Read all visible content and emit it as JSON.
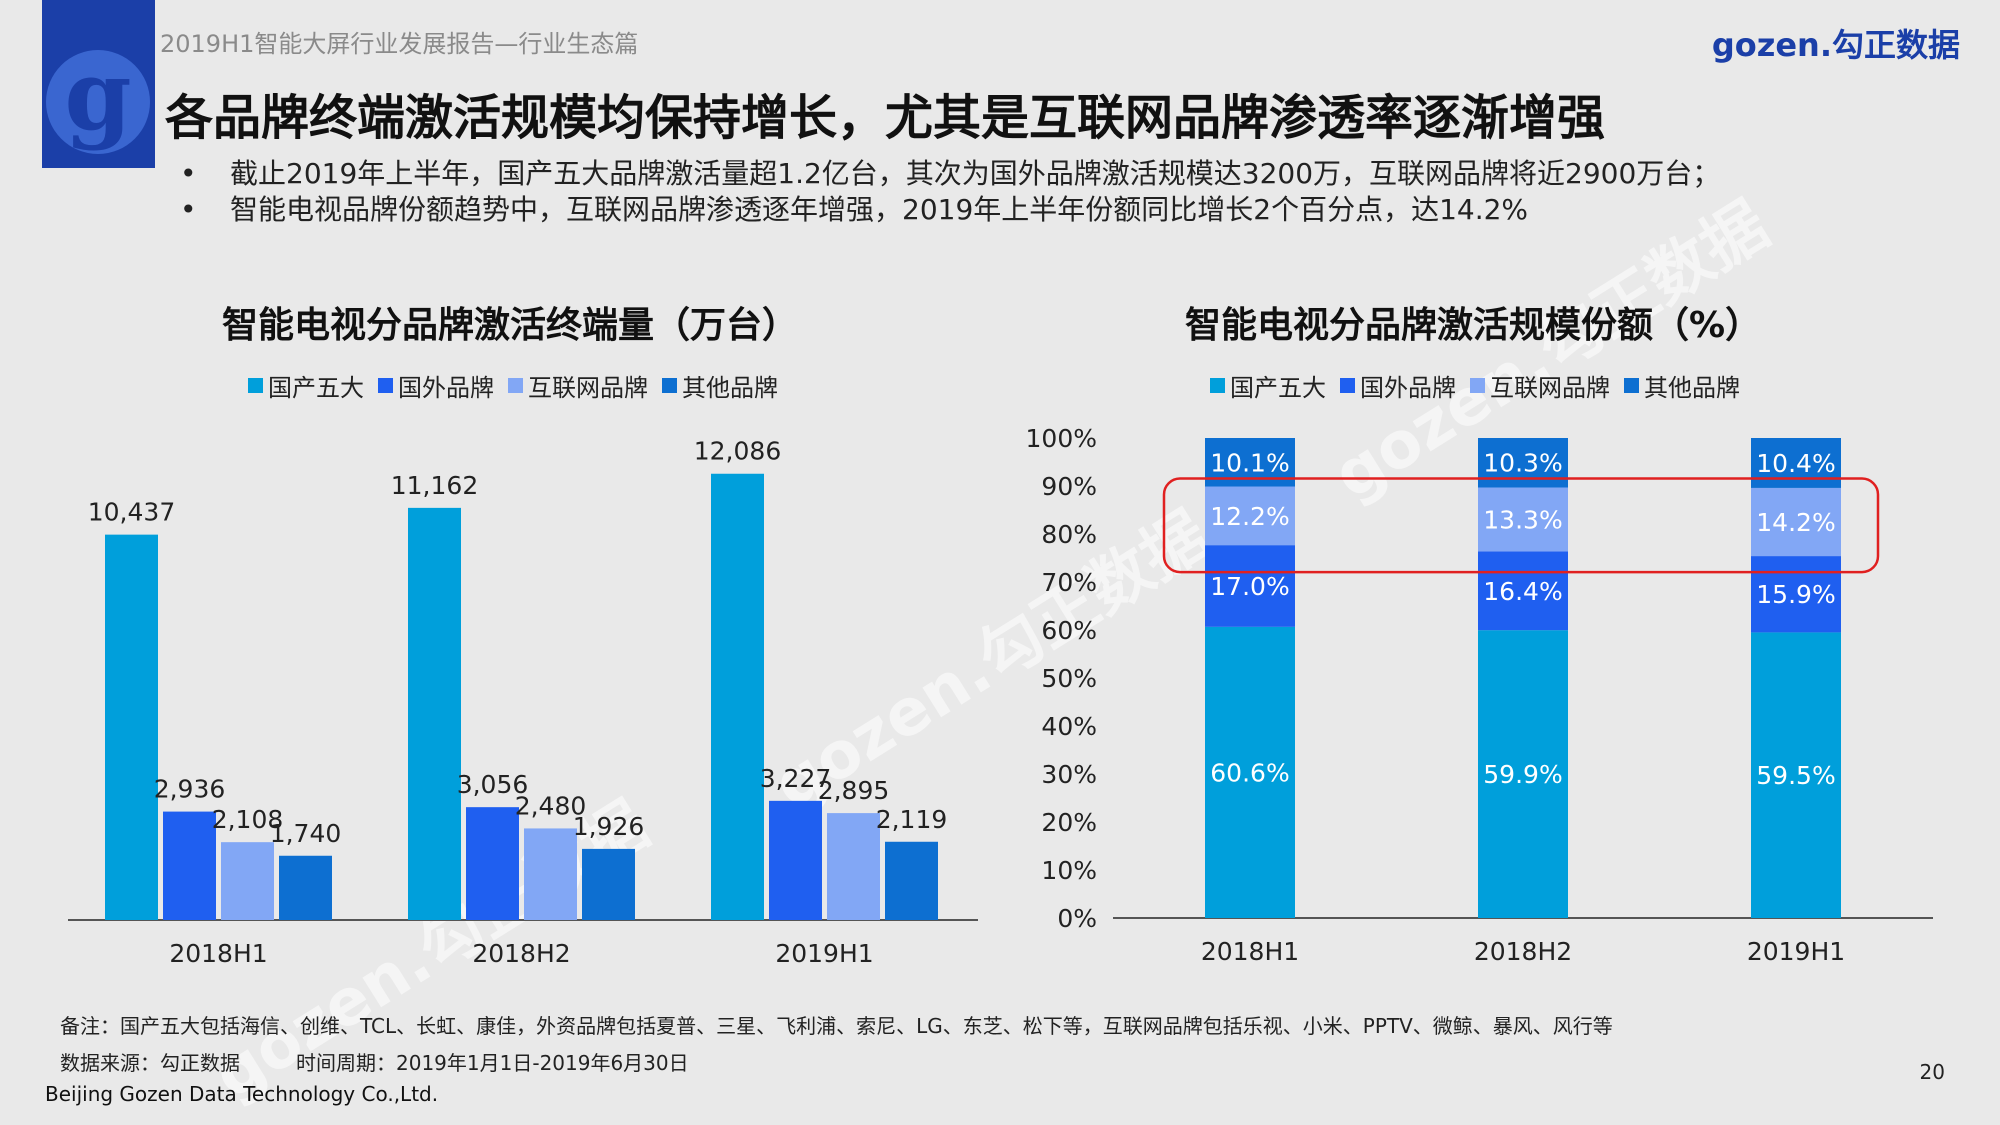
{
  "header": {
    "logo_glyph": "g",
    "report_title": "2019H1智能大屏行业发展报告—行业生态篇",
    "brand": "gozen.勾正数据"
  },
  "main_title": "各品牌终端激活规模均保持增长，尤其是互联网品牌渗透率逐渐增强",
  "bullets": [
    "截止2019年上半年，国产五大品牌激活量超1.2亿台，其次为国外品牌激活规模达3200万，互联网品牌将近2900万台；",
    "智能电视品牌份额趋势中，互联网品牌渗透逐年增强，2019年上半年份额同比增长2个百分点，达14.2%"
  ],
  "watermark_text": "gozen.勾正数据",
  "colors": {
    "domestic": "#009fdb",
    "foreign": "#1f5ff0",
    "internet": "#82a7f5",
    "other": "#0d6fd1",
    "highlight": "#e02020",
    "brand": "#1b3fa8"
  },
  "chart_data": [
    {
      "type": "bar",
      "title": "智能电视分品牌激活终端量（万台）",
      "categories": [
        "2018H1",
        "2018H2",
        "2019H1"
      ],
      "legend_position": "top",
      "grid": false,
      "ylim": [
        0,
        13000
      ],
      "series": [
        {
          "name": "国产五大",
          "values": [
            10437,
            11162,
            12086
          ],
          "labels": [
            "10,437",
            "11,162",
            "12,086"
          ]
        },
        {
          "name": "国外品牌",
          "values": [
            2936,
            3056,
            3227
          ],
          "labels": [
            "2,936",
            "3,056",
            "3,227"
          ]
        },
        {
          "name": "互联网品牌",
          "values": [
            2108,
            2480,
            2895
          ],
          "labels": [
            "2,108",
            "2,480",
            "2,895"
          ]
        },
        {
          "name": "其他品牌",
          "values": [
            1740,
            1926,
            2119
          ],
          "labels": [
            "1,740",
            "1,926",
            "2,119"
          ]
        }
      ]
    },
    {
      "type": "bar",
      "stacked": true,
      "title": "智能电视分品牌激活规模份额（%）",
      "categories": [
        "2018H1",
        "2018H2",
        "2019H1"
      ],
      "legend_position": "top",
      "grid": false,
      "ylim": [
        0,
        100
      ],
      "yticks": [
        "0%",
        "10%",
        "20%",
        "30%",
        "40%",
        "50%",
        "60%",
        "70%",
        "80%",
        "90%",
        "100%"
      ],
      "series": [
        {
          "name": "国产五大",
          "values": [
            60.6,
            59.9,
            59.5
          ],
          "labels": [
            "60.6%",
            "59.9%",
            "59.5%"
          ]
        },
        {
          "name": "国外品牌",
          "values": [
            17.0,
            16.4,
            15.9
          ],
          "labels": [
            "17.0%",
            "16.4%",
            "15.9%"
          ]
        },
        {
          "name": "互联网品牌",
          "values": [
            12.2,
            13.3,
            14.2
          ],
          "labels": [
            "12.2%",
            "13.3%",
            "14.2%"
          ]
        },
        {
          "name": "其他品牌",
          "values": [
            10.1,
            10.3,
            10.4
          ],
          "labels": [
            "10.1%",
            "10.3%",
            "10.4%"
          ]
        }
      ],
      "highlighted_series": "互联网品牌"
    }
  ],
  "footer": {
    "note": "备注：国产五大包括海信、创维、TCL、长虹、康佳，外资品牌包括夏普、三星、飞利浦、索尼、LG、东芝、松下等，互联网品牌包括乐视、小米、PPTV、微鲸、暴风、风行等",
    "source": "数据来源：勾正数据",
    "period": "时间周期：2019年1月1日-2019年6月30日",
    "company": "Beijing Gozen Data Technology Co.,Ltd.",
    "page": "20"
  }
}
